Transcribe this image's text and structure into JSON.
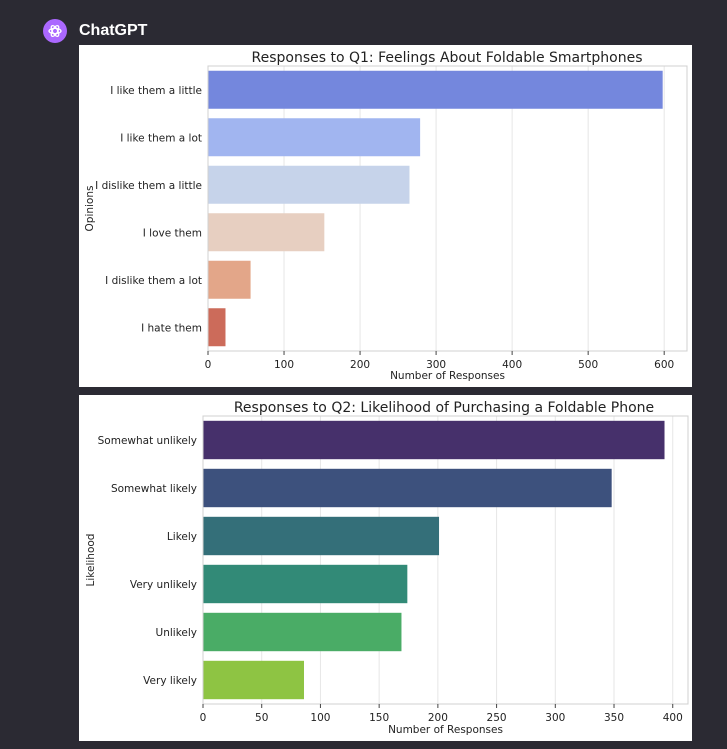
{
  "app": {
    "name": "ChatGPT",
    "logo_icon": "openai-logo-icon",
    "accent": "#ab68ff"
  },
  "chart_data": [
    {
      "type": "bar",
      "orientation": "horizontal",
      "title": "Responses to Q1: Feelings About Foldable Smartphones",
      "xlabel": "Number of Responses",
      "ylabel": "Opinions",
      "xlim": [
        0,
        630
      ],
      "xticks": [
        0,
        100,
        200,
        300,
        400,
        500,
        600
      ],
      "grid": true,
      "categories": [
        "I like them a little",
        "I like them a lot",
        "I dislike them a little",
        "I love them",
        "I dislike them a lot",
        "I hate them"
      ],
      "values": [
        598,
        279,
        265,
        153,
        56,
        23
      ],
      "colors": [
        "#7487dd",
        "#a1b5f0",
        "#c6d3ea",
        "#e7cfc1",
        "#e3a689",
        "#cc6b5a"
      ]
    },
    {
      "type": "bar",
      "orientation": "horizontal",
      "title": "Responses to Q2: Likelihood of Purchasing a Foldable Phone",
      "xlabel": "Number of Responses",
      "ylabel": "Likelihood",
      "xlim": [
        0,
        413
      ],
      "xticks": [
        0,
        50,
        100,
        150,
        200,
        250,
        300,
        350,
        400
      ],
      "grid": true,
      "categories": [
        "Somewhat unlikely",
        "Somewhat likely",
        "Likely",
        "Very unlikely",
        "Unlikely",
        "Very likely"
      ],
      "values": [
        393,
        348,
        201,
        174,
        169,
        86
      ],
      "colors": [
        "#46306b",
        "#3d517d",
        "#346f79",
        "#328a77",
        "#4aac66",
        "#8ec443"
      ]
    }
  ]
}
